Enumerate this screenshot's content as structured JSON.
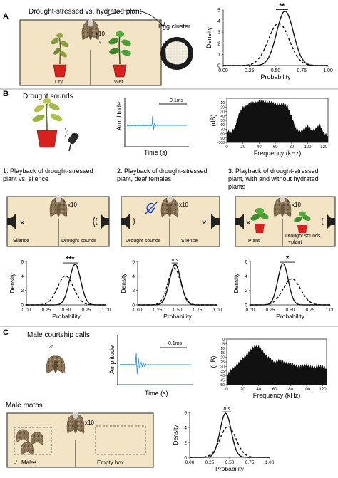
{
  "panels": {
    "A": {
      "letter": "A",
      "title": "Drought-stressed vs. hydrated plant",
      "count": "x10",
      "dry": "Dry",
      "wet": "Wet",
      "egg_label": "Egg cluster",
      "sig": "**"
    },
    "B": {
      "letter": "B",
      "title": "Drought sounds",
      "amp_label": "Amplitude",
      "time_label": "Time (s)",
      "scale_bar": "0.1ms",
      "db_label": "(dB)",
      "freq_label": "Frequency (kHz)",
      "db_ticks": [
        "-10",
        "-20",
        "-30",
        "-40",
        "-50",
        "-60",
        "-70",
        "-80",
        "-90",
        "-100"
      ],
      "freq_ticks": [
        "0",
        "20",
        "40",
        "60",
        "80",
        "100",
        "120"
      ],
      "freq_super": "8",
      "experiments": [
        {
          "title_line1": "1: Playback of drought-stressed",
          "title_line2": "plant vs. silence",
          "title_line3": "",
          "count": "x10",
          "left_label": "Silence",
          "right_label": "Drought sounds",
          "sig": "***"
        },
        {
          "title_line1": "2: Playback of drought-stressed",
          "title_line2": "plant, deaf females",
          "title_line3": "",
          "count": "x10",
          "left_label": "Drought sounds",
          "right_label": "Silence",
          "sig": "n.s"
        },
        {
          "title_line1": "3: Playback of drought-stressed",
          "title_line2": "plant, with and without hydrated",
          "title_line3": "plants",
          "count": "x10",
          "left_label": "Plant",
          "right_label": "Drought sounds",
          "right_label2": "+plant",
          "sig": "*"
        }
      ]
    },
    "C": {
      "letter": "C",
      "title": "Male courtship calls",
      "amp_label": "Amplitude",
      "time_label": "Time (s)",
      "scale_bar": "0.1ms",
      "db_label": "(dB)",
      "freq_label": "Frequency (kHz)",
      "db_ticks": [
        "0",
        "-5",
        "-10",
        "-15",
        "-20",
        "-25",
        "-30",
        "-35",
        "-40",
        "-45",
        "-50"
      ],
      "freq_ticks": [
        "0",
        "20",
        "40",
        "60",
        "80",
        "100",
        "120"
      ],
      "moths_title": "Male moths",
      "count": "x10",
      "males_label": "Males",
      "empty_label": "Empty box",
      "sig": "n.s"
    }
  },
  "colors": {
    "box_fill": "#f2e4c4",
    "pot_red": "#d8201c",
    "plant_green": "#3f8f2c",
    "dry_green": "#7f9a3a",
    "wave_blue": "#3a9ad9",
    "speaker": "#222222",
    "ear_blue": "#2244cc"
  },
  "chart_data": [
    {
      "id": "A",
      "type": "line",
      "xlabel": "Probability",
      "ylabel": "Density",
      "xlim": [
        0,
        1
      ],
      "ylim": [
        0,
        5
      ],
      "xticks": [
        "0.00",
        "0.25",
        "0.50",
        "0.75",
        "1.00"
      ],
      "yticks": [
        "0",
        "1",
        "2",
        "3",
        "4",
        "5"
      ],
      "series": [
        {
          "style": "solid",
          "mean": 0.59,
          "sd": 0.08,
          "peak": 4.9
        },
        {
          "style": "dashed",
          "mean": 0.53,
          "sd": 0.1,
          "peak": 3.8
        }
      ],
      "annotation": "**"
    },
    {
      "id": "B1",
      "type": "line",
      "xlabel": "Probability",
      "ylabel": "Density",
      "xlim": [
        0,
        1
      ],
      "ylim": [
        0,
        6
      ],
      "xticks": [
        "0.00",
        "0.25",
        "0.50",
        "0.75",
        "1.00"
      ],
      "yticks": [
        "0",
        "2",
        "4",
        "6"
      ],
      "series": [
        {
          "style": "solid",
          "mean": 0.61,
          "sd": 0.07,
          "peak": 5.6
        },
        {
          "style": "dashed",
          "mean": 0.49,
          "sd": 0.1,
          "peak": 4.0
        }
      ],
      "annotation": "***"
    },
    {
      "id": "B2",
      "type": "line",
      "xlabel": "Probability",
      "ylabel": "Density",
      "xlim": [
        0,
        1
      ],
      "ylim": [
        0,
        6
      ],
      "xticks": [
        "0.00",
        "0.25",
        "0.50",
        "0.75",
        "1.00"
      ],
      "yticks": [
        "0",
        "2",
        "4",
        "6"
      ],
      "series": [
        {
          "style": "solid",
          "mean": 0.47,
          "sd": 0.07,
          "peak": 5.6
        },
        {
          "style": "dashed",
          "mean": 0.46,
          "sd": 0.08,
          "peak": 5.1
        }
      ],
      "annotation": "n.s"
    },
    {
      "id": "B3",
      "type": "line",
      "xlabel": "Probability",
      "ylabel": "Density",
      "xlim": [
        0,
        1
      ],
      "ylim": [
        0,
        6
      ],
      "xticks": [
        "0.00",
        "0.25",
        "0.50",
        "0.75",
        "1.00"
      ],
      "yticks": [
        "0",
        "2",
        "4",
        "6"
      ],
      "series": [
        {
          "style": "solid",
          "mean": 0.41,
          "sd": 0.065,
          "peak": 5.7
        },
        {
          "style": "dashed",
          "mean": 0.52,
          "sd": 0.11,
          "peak": 3.6
        }
      ],
      "annotation": "*"
    },
    {
      "id": "C",
      "type": "line",
      "xlabel": "Probability",
      "ylabel": "Density",
      "xlim": [
        0,
        1
      ],
      "ylim": [
        0,
        6
      ],
      "xticks": [
        "0.00",
        "0.25",
        "0.50",
        "0.75",
        "1.00"
      ],
      "yticks": [
        "0",
        "2",
        "4",
        "6"
      ],
      "series": [
        {
          "style": "solid",
          "mean": 0.45,
          "sd": 0.07,
          "peak": 5.9
        },
        {
          "style": "dashed",
          "mean": 0.48,
          "sd": 0.1,
          "peak": 4.1
        }
      ],
      "annotation": "n.s"
    },
    {
      "id": "B_spectrum",
      "type": "area",
      "xlabel": "Frequency (kHz)",
      "ylabel": "(dB)",
      "xlim": [
        0,
        125
      ],
      "ylim": [
        -100,
        0
      ],
      "x": [
        0,
        5,
        10,
        15,
        20,
        25,
        30,
        35,
        40,
        45,
        50,
        55,
        60,
        65,
        70,
        75,
        80,
        85,
        90,
        95,
        100,
        105,
        110,
        115,
        120,
        125
      ],
      "y": [
        -72,
        -78,
        -65,
        -35,
        -20,
        -14,
        -10,
        -8,
        -6,
        -6,
        -8,
        -9,
        -12,
        -14,
        -12,
        -18,
        -40,
        -68,
        -75,
        -70,
        -62,
        -72,
        -68,
        -60,
        -78,
        -85
      ]
    },
    {
      "id": "C_spectrum",
      "type": "area",
      "xlabel": "Frequency (kHz)",
      "ylabel": "(dB)",
      "xlim": [
        0,
        125
      ],
      "ylim": [
        -50,
        0
      ],
      "x": [
        0,
        5,
        10,
        15,
        20,
        25,
        30,
        35,
        40,
        45,
        50,
        55,
        60,
        65,
        70,
        75,
        80,
        85,
        90,
        95,
        100,
        105,
        110,
        115,
        120,
        125
      ],
      "y": [
        -40,
        -34,
        -30,
        -26,
        -21,
        -17,
        -12,
        -7,
        -8,
        -13,
        -18,
        -22,
        -25,
        -23,
        -24,
        -26,
        -27,
        -28,
        -30,
        -29,
        -28,
        -30,
        -31,
        -29,
        -30,
        -32
      ]
    }
  ]
}
